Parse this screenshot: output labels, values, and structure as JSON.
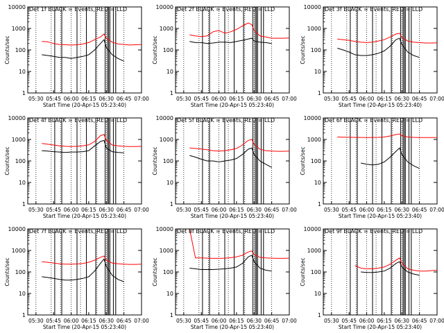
{
  "figure": {
    "ylabel": "Counts/sec",
    "xlabel": "Start Time (20-Apr-15 05:23:40)",
    "colors": {
      "events": "#000000",
      "lld": "#ff0000"
    },
    "x_ticks": [
      "05:30",
      "05:45",
      "06:00",
      "06:15",
      "06:30",
      "06:45",
      "07:00"
    ],
    "y_ticks": [
      "1",
      "10",
      "100",
      "1000",
      "10000"
    ]
  },
  "chart_data": [
    {
      "type": "line",
      "title": "Det 1f BLACK = Events, RED = LLD",
      "xlabel": "Start Time (20-Apr-15 05:23:40)",
      "ylabel": "Counts/sec",
      "y_scale": "log",
      "ylim": [
        1,
        10000
      ],
      "x": [
        "05:35",
        "05:40",
        "05:45",
        "05:50",
        "05:55",
        "06:00",
        "06:05",
        "06:10",
        "06:15",
        "06:20",
        "06:25",
        "06:28",
        "06:30",
        "06:35",
        "06:40",
        "06:45",
        "06:50",
        "06:55",
        "07:00"
      ],
      "series": [
        {
          "name": "BLACK = Events",
          "color": "#000000",
          "values": [
            60,
            55,
            50,
            45,
            45,
            40,
            45,
            50,
            60,
            100,
            200,
            300,
            130,
            60,
            40,
            30,
            null,
            null,
            null
          ]
        },
        {
          "name": "RED = LLD",
          "color": "#ff0000",
          "values": [
            250,
            240,
            200,
            180,
            175,
            170,
            175,
            190,
            220,
            300,
            400,
            550,
            350,
            230,
            190,
            180,
            170,
            175,
            180
          ]
        }
      ],
      "bands": [
        "05:30",
        "05:43",
        "05:51",
        "06:00",
        "06:08",
        "06:13",
        "06:22",
        "06:30",
        "06:38",
        "06:45",
        "07:00"
      ],
      "markers": [
        "05:46",
        "05:52",
        "06:05",
        "06:13",
        "06:21",
        "06:29",
        "06:31",
        "06:32",
        "06:33",
        "06:36",
        "06:38"
      ]
    },
    {
      "type": "line",
      "title": "Det 2f BLACK = Events, RED = LLD",
      "xlabel": "Start Time (20-Apr-15 05:23:40)",
      "ylabel": "Counts/sec",
      "y_scale": "log",
      "ylim": [
        1,
        10000
      ],
      "x": [
        "05:35",
        "05:40",
        "05:45",
        "05:50",
        "05:55",
        "06:00",
        "06:05",
        "06:10",
        "06:15",
        "06:20",
        "06:25",
        "06:28",
        "06:30",
        "06:35",
        "06:40",
        "06:45",
        "06:50",
        "06:55",
        "07:00"
      ],
      "series": [
        {
          "name": "BLACK = Events",
          "color": "#000000",
          "values": [
            250,
            220,
            220,
            200,
            210,
            230,
            230,
            220,
            250,
            280,
            320,
            350,
            260,
            230,
            220,
            200,
            null,
            null,
            null
          ]
        },
        {
          "name": "RED = LLD",
          "color": "#ff0000",
          "values": [
            500,
            450,
            420,
            450,
            700,
            800,
            600,
            700,
            900,
            1300,
            1800,
            1500,
            800,
            450,
            400,
            350,
            350,
            350,
            360
          ]
        }
      ],
      "bands": [
        "05:30",
        "05:43",
        "05:51",
        "06:00",
        "06:08",
        "06:13",
        "06:22",
        "06:30",
        "06:38",
        "06:45",
        "07:00"
      ],
      "markers": [
        "05:46",
        "05:52",
        "06:05",
        "06:13",
        "06:21",
        "06:29",
        "06:31",
        "06:32",
        "06:33",
        "06:36",
        "06:38"
      ]
    },
    {
      "type": "line",
      "title": "Det 3f BLACK = Events, RED = LLD",
      "xlabel": "Start Time (20-Apr-15 05:23:40)",
      "ylabel": "Counts/sec",
      "y_scale": "log",
      "ylim": [
        1,
        10000
      ],
      "x": [
        "05:35",
        "05:40",
        "05:45",
        "05:50",
        "05:55",
        "06:00",
        "06:05",
        "06:10",
        "06:15",
        "06:20",
        "06:25",
        "06:28",
        "06:30",
        "06:35",
        "06:40",
        "06:45",
        "06:50",
        "06:55",
        "07:00"
      ],
      "series": [
        {
          "name": "BLACK = Events",
          "color": "#000000",
          "values": [
            120,
            100,
            80,
            60,
            55,
            55,
            60,
            70,
            90,
            150,
            300,
            350,
            180,
            80,
            55,
            45,
            null,
            null,
            null
          ]
        },
        {
          "name": "RED = LLD",
          "color": "#ff0000",
          "values": [
            320,
            300,
            280,
            250,
            230,
            220,
            230,
            260,
            300,
            400,
            550,
            600,
            380,
            260,
            230,
            220,
            210,
            210,
            215
          ]
        }
      ],
      "bands": [
        "05:30",
        "05:43",
        "05:51",
        "06:00",
        "06:08",
        "06:13",
        "06:22",
        "06:30",
        "06:38",
        "06:45",
        "07:00"
      ],
      "markers": [
        "05:46",
        "05:52",
        "06:05",
        "06:13",
        "06:21",
        "06:29",
        "06:31",
        "06:32",
        "06:33",
        "06:36",
        "06:38"
      ]
    },
    {
      "type": "line",
      "title": "Det 4f BLACK = Events, RED = LLD",
      "xlabel": "Start Time (20-Apr-15 05:23:40)",
      "ylabel": "Counts/sec",
      "y_scale": "log",
      "ylim": [
        1,
        10000
      ],
      "x": [
        "05:35",
        "05:40",
        "05:45",
        "05:50",
        "05:55",
        "06:00",
        "06:05",
        "06:10",
        "06:15",
        "06:20",
        "06:25",
        "06:28",
        "06:30",
        "06:35",
        "06:40",
        "06:45",
        "06:50",
        "06:55",
        "07:00"
      ],
      "series": [
        {
          "name": "BLACK = Events",
          "color": "#000000",
          "values": [
            300,
            290,
            270,
            260,
            250,
            260,
            260,
            270,
            300,
            500,
            800,
            900,
            400,
            270,
            250,
            240,
            null,
            null,
            null
          ]
        },
        {
          "name": "RED = LLD",
          "color": "#ff0000",
          "values": [
            650,
            600,
            550,
            500,
            480,
            470,
            480,
            500,
            560,
            800,
            1500,
            1700,
            900,
            550,
            500,
            480,
            470,
            470,
            480
          ]
        }
      ],
      "bands": [
        "05:30",
        "05:43",
        "05:51",
        "06:00",
        "06:08",
        "06:13",
        "06:22",
        "06:30",
        "06:38",
        "06:45",
        "07:00"
      ],
      "markers": [
        "05:46",
        "05:52",
        "06:05",
        "06:13",
        "06:21",
        "06:29",
        "06:31",
        "06:32",
        "06:33",
        "06:36",
        "06:38"
      ]
    },
    {
      "type": "line",
      "title": "Det 5f BLACK = Events, RED = LLD",
      "xlabel": "Start Time (20-Apr-15 05:23:40)",
      "ylabel": "Counts/sec",
      "y_scale": "log",
      "ylim": [
        1,
        10000
      ],
      "x": [
        "05:35",
        "05:40",
        "05:45",
        "05:50",
        "05:55",
        "06:00",
        "06:05",
        "06:10",
        "06:15",
        "06:20",
        "06:25",
        "06:28",
        "06:30",
        "06:35",
        "06:40",
        "06:45",
        "06:50",
        "06:55",
        "07:00"
      ],
      "series": [
        {
          "name": "BLACK = Events",
          "color": "#000000",
          "values": [
            180,
            150,
            120,
            100,
            100,
            90,
            100,
            110,
            130,
            200,
            350,
            400,
            200,
            100,
            70,
            50,
            null,
            null,
            null
          ]
        },
        {
          "name": "RED = LLD",
          "color": "#ff0000",
          "values": [
            400,
            380,
            360,
            330,
            300,
            290,
            300,
            330,
            380,
            550,
            900,
            1000,
            600,
            350,
            300,
            290,
            280,
            280,
            290
          ]
        }
      ],
      "bands": [
        "05:30",
        "05:43",
        "05:51",
        "06:00",
        "06:08",
        "06:13",
        "06:22",
        "06:30",
        "06:38",
        "06:45",
        "07:00"
      ],
      "markers": [
        "05:46",
        "05:52",
        "06:05",
        "06:13",
        "06:21",
        "06:29",
        "06:31",
        "06:32",
        "06:33",
        "06:36",
        "06:38"
      ]
    },
    {
      "type": "line",
      "title": "Det 6f BLACK = Events, RED = LLD",
      "xlabel": "Start Time (20-Apr-15 05:23:40)",
      "ylabel": "Counts/sec",
      "y_scale": "log",
      "ylim": [
        1,
        10000
      ],
      "x": [
        "05:35",
        "05:40",
        "05:45",
        "05:50",
        "05:55",
        "06:00",
        "06:05",
        "06:10",
        "06:15",
        "06:20",
        "06:25",
        "06:28",
        "06:30",
        "06:35",
        "06:40",
        "06:45",
        "06:50",
        "06:55",
        "07:00"
      ],
      "series": [
        {
          "name": "BLACK = Events",
          "color": "#000000",
          "values": [
            null,
            null,
            null,
            null,
            80,
            70,
            65,
            70,
            90,
            150,
            280,
            400,
            200,
            90,
            60,
            45,
            null,
            null,
            null
          ]
        },
        {
          "name": "RED = LLD",
          "color": "#ff0000",
          "values": [
            1300,
            1280,
            1260,
            1250,
            1240,
            1230,
            1240,
            1250,
            1300,
            1450,
            1700,
            1800,
            1500,
            1300,
            1250,
            1230,
            1220,
            1220,
            1230
          ]
        }
      ],
      "bands": [
        "05:30",
        "05:43",
        "05:51",
        "06:00",
        "06:08",
        "06:13",
        "06:22",
        "06:30",
        "06:38",
        "06:45",
        "07:00"
      ],
      "markers": [
        "05:46",
        "05:52",
        "06:05",
        "06:13",
        "06:21",
        "06:29",
        "06:31",
        "06:32",
        "06:33",
        "06:36",
        "06:38"
      ]
    },
    {
      "type": "line",
      "title": "Det 7f BLACK = Events, RED = LLD",
      "xlabel": "Start Time (20-Apr-15 05:23:40)",
      "ylabel": "Counts/sec",
      "y_scale": "log",
      "ylim": [
        1,
        10000
      ],
      "x": [
        "05:35",
        "05:40",
        "05:45",
        "05:50",
        "05:55",
        "06:00",
        "06:05",
        "06:10",
        "06:15",
        "06:20",
        "06:25",
        "06:28",
        "06:30",
        "06:35",
        "06:40",
        "06:45",
        "06:50",
        "06:55",
        "07:00"
      ],
      "series": [
        {
          "name": "BLACK = Events",
          "color": "#000000",
          "values": [
            60,
            55,
            50,
            45,
            42,
            42,
            45,
            50,
            60,
            110,
            250,
            400,
            180,
            70,
            45,
            35,
            null,
            null,
            null
          ]
        },
        {
          "name": "RED = LLD",
          "color": "#ff0000",
          "values": [
            300,
            280,
            260,
            240,
            230,
            230,
            235,
            250,
            280,
            350,
            480,
            550,
            350,
            260,
            240,
            230,
            225,
            225,
            230
          ]
        }
      ],
      "bands": [
        "05:30",
        "05:43",
        "05:51",
        "06:00",
        "06:08",
        "06:13",
        "06:22",
        "06:30",
        "06:38",
        "06:45",
        "07:00"
      ],
      "markers": [
        "05:46",
        "05:52",
        "06:05",
        "06:13",
        "06:21",
        "06:29",
        "06:31",
        "06:32",
        "06:33",
        "06:36",
        "06:38"
      ]
    },
    {
      "type": "line",
      "title": "Det 8f BLACK = Events, RED = LLD",
      "xlabel": "Start Time (20-Apr-15 05:23:40)",
      "ylabel": "Counts/sec",
      "y_scale": "log",
      "ylim": [
        1,
        10000
      ],
      "x": [
        "05:35",
        "05:40",
        "05:45",
        "05:50",
        "05:55",
        "06:00",
        "06:05",
        "06:10",
        "06:15",
        "06:20",
        "06:25",
        "06:28",
        "06:30",
        "06:35",
        "06:40",
        "06:45",
        "06:50",
        "06:55",
        "07:00"
      ],
      "series": [
        {
          "name": "BLACK = Events",
          "color": "#000000",
          "values": [
            150,
            140,
            130,
            130,
            130,
            135,
            140,
            150,
            170,
            250,
            500,
            600,
            300,
            150,
            120,
            110,
            null,
            null,
            null
          ]
        },
        {
          "name": "RED = LLD",
          "color": "#ff0000",
          "values": [
            10000,
            450,
            450,
            440,
            430,
            430,
            440,
            460,
            500,
            600,
            850,
            950,
            650,
            480,
            450,
            440,
            430,
            430,
            440
          ]
        }
      ],
      "bands": [
        "05:30",
        "05:43",
        "05:51",
        "06:00",
        "06:08",
        "06:13",
        "06:22",
        "06:30",
        "06:38",
        "06:45",
        "07:00"
      ],
      "markers": [
        "05:46",
        "05:52",
        "06:05",
        "06:13",
        "06:21",
        "06:29",
        "06:31",
        "06:32",
        "06:33",
        "06:36",
        "06:38"
      ]
    },
    {
      "type": "line",
      "title": "Det 9f BLACK = Events, RED = LLD",
      "xlabel": "Start Time (20-Apr-15 05:23:40)",
      "ylabel": "Counts/sec",
      "y_scale": "log",
      "ylim": [
        1,
        10000
      ],
      "x": [
        "05:35",
        "05:40",
        "05:45",
        "05:50",
        "05:55",
        "06:00",
        "06:05",
        "06:10",
        "06:15",
        "06:20",
        "06:25",
        "06:28",
        "06:30",
        "06:35",
        "06:40",
        "06:45",
        "06:50",
        "06:55",
        "07:00"
      ],
      "series": [
        {
          "name": "BLACK = Events",
          "color": "#000000",
          "values": [
            null,
            null,
            null,
            null,
            100,
            95,
            95,
            100,
            110,
            150,
            250,
            300,
            170,
            100,
            80,
            70,
            null,
            null,
            null
          ]
        },
        {
          "name": "RED = LLD",
          "color": "#ff0000",
          "values": [
            null,
            null,
            null,
            200,
            150,
            140,
            140,
            150,
            170,
            230,
            350,
            450,
            260,
            140,
            120,
            110,
            110,
            115,
            120
          ]
        }
      ],
      "bands": [
        "05:30",
        "05:43",
        "05:51",
        "06:00",
        "06:08",
        "06:13",
        "06:22",
        "06:30",
        "06:38",
        "06:45",
        "07:00"
      ],
      "markers": [
        "05:46",
        "05:52",
        "06:05",
        "06:13",
        "06:21",
        "06:29",
        "06:31",
        "06:32",
        "06:33",
        "06:36",
        "06:38"
      ]
    }
  ]
}
